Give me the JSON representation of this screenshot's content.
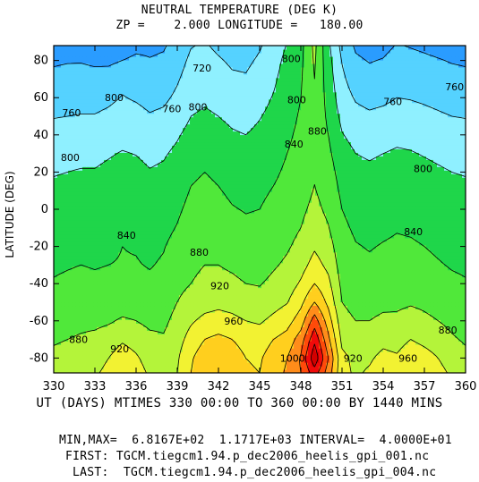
{
  "chart_data": {
    "type": "heatmap",
    "title": "NEUTRAL TEMPERATURE (DEG K)",
    "subtitle": "ZP =    2.000 LONGITUDE =   180.00",
    "ylabel": "LATITUDE (DEG)",
    "xlabel": "UT (DAYS) MTIMES 330 00:00 TO 360 00:00 BY 1440 MINS",
    "xlim": [
      330,
      360
    ],
    "ylim": [
      -88,
      88
    ],
    "x_ticks": [
      330,
      333,
      336,
      339,
      342,
      345,
      348,
      351,
      354,
      357,
      360
    ],
    "y_ticks": [
      -80,
      -60,
      -40,
      -20,
      0,
      20,
      40,
      60,
      80
    ],
    "contour_interval": 40,
    "levels": [
      680,
      720,
      760,
      800,
      840,
      880,
      920,
      960,
      1000,
      1040,
      1080,
      1120,
      1160
    ],
    "level_colors": [
      "#1c3ee0",
      "#2a9cff",
      "#55d2ff",
      "#8ff0ff",
      "#1fd64a",
      "#50e83a",
      "#b4f43a",
      "#f2f232",
      "#ffcf1e",
      "#ff8c1a",
      "#ff4a0a",
      "#f00a0a",
      "#d20000",
      "#ff2e8c"
    ],
    "x": [
      330,
      331,
      332,
      333,
      334,
      335,
      336,
      337,
      338,
      339,
      340,
      341,
      342,
      343,
      344,
      345,
      346,
      347,
      348,
      349,
      350,
      351,
      352,
      353,
      354,
      355,
      356,
      357,
      358,
      359,
      360
    ],
    "y": [
      -88,
      -80,
      -70,
      -60,
      -50,
      -40,
      -30,
      -20,
      -10,
      0,
      10,
      20,
      30,
      40,
      50,
      60,
      70,
      80,
      88
    ],
    "z": [
      [
        900,
        905,
        910,
        915,
        930,
        950,
        935,
        915,
        910,
        920,
        960,
        990,
        1000,
        985,
        965,
        960,
        985,
        1005,
        1040,
        1100,
        1020,
        930,
        915,
        925,
        940,
        935,
        955,
        945,
        930,
        915,
        900
      ],
      [
        890,
        895,
        900,
        905,
        920,
        940,
        925,
        905,
        900,
        915,
        955,
        985,
        995,
        980,
        960,
        955,
        980,
        1000,
        1045,
        1150,
        1040,
        930,
        910,
        915,
        930,
        925,
        945,
        935,
        920,
        905,
        890
      ],
      [
        875,
        880,
        885,
        890,
        900,
        915,
        905,
        890,
        885,
        905,
        935,
        960,
        970,
        960,
        945,
        940,
        960,
        975,
        1020,
        1110,
        1010,
        910,
        895,
        900,
        910,
        905,
        920,
        910,
        900,
        885,
        875
      ],
      [
        860,
        865,
        870,
        870,
        875,
        885,
        880,
        870,
        870,
        895,
        915,
        930,
        935,
        930,
        920,
        915,
        930,
        945,
        980,
        1060,
        980,
        895,
        880,
        880,
        890,
        890,
        900,
        890,
        880,
        870,
        860
      ],
      [
        850,
        852,
        855,
        855,
        858,
        862,
        860,
        855,
        858,
        880,
        895,
        905,
        910,
        905,
        895,
        892,
        905,
        918,
        950,
        1000,
        950,
        880,
        865,
        862,
        868,
        870,
        875,
        870,
        862,
        855,
        850
      ],
      [
        842,
        845,
        848,
        846,
        848,
        850,
        850,
        846,
        850,
        870,
        880,
        890,
        892,
        888,
        880,
        878,
        888,
        900,
        925,
        960,
        930,
        870,
        856,
        852,
        856,
        858,
        860,
        856,
        850,
        845,
        842
      ],
      [
        836,
        838,
        840,
        838,
        840,
        842,
        842,
        838,
        844,
        860,
        872,
        880,
        880,
        874,
        866,
        866,
        876,
        886,
        905,
        935,
        910,
        862,
        848,
        845,
        848,
        850,
        850,
        846,
        842,
        838,
        836
      ],
      [
        830,
        832,
        834,
        832,
        834,
        840,
        838,
        832,
        838,
        852,
        866,
        872,
        870,
        862,
        856,
        856,
        866,
        876,
        890,
        915,
        895,
        856,
        842,
        838,
        842,
        845,
        844,
        840,
        836,
        832,
        830
      ],
      [
        822,
        824,
        826,
        825,
        828,
        835,
        832,
        826,
        830,
        842,
        858,
        864,
        860,
        852,
        846,
        848,
        858,
        868,
        880,
        900,
        882,
        848,
        834,
        830,
        834,
        838,
        836,
        832,
        828,
        824,
        822
      ],
      [
        814,
        816,
        818,
        818,
        822,
        828,
        825,
        818,
        822,
        834,
        850,
        856,
        850,
        842,
        838,
        840,
        850,
        860,
        872,
        890,
        872,
        840,
        826,
        822,
        826,
        830,
        828,
        824,
        820,
        816,
        814
      ],
      [
        806,
        808,
        810,
        810,
        815,
        820,
        817,
        810,
        814,
        826,
        842,
        848,
        842,
        834,
        830,
        833,
        842,
        852,
        864,
        882,
        864,
        832,
        818,
        814,
        818,
        822,
        820,
        816,
        812,
        808,
        806
      ],
      [
        798,
        800,
        802,
        802,
        807,
        812,
        809,
        802,
        806,
        818,
        834,
        840,
        834,
        826,
        822,
        826,
        834,
        846,
        858,
        876,
        856,
        824,
        810,
        806,
        810,
        814,
        812,
        808,
        804,
        800,
        798
      ],
      [
        788,
        790,
        792,
        792,
        797,
        802,
        799,
        792,
        796,
        808,
        824,
        830,
        824,
        816,
        812,
        818,
        826,
        840,
        852,
        872,
        848,
        814,
        800,
        796,
        800,
        804,
        802,
        798,
        794,
        790,
        788
      ],
      [
        775,
        777,
        779,
        779,
        784,
        790,
        787,
        779,
        783,
        796,
        812,
        818,
        812,
        804,
        800,
        808,
        818,
        834,
        848,
        870,
        840,
        802,
        788,
        783,
        787,
        792,
        790,
        786,
        781,
        777,
        775
      ],
      [
        758,
        760,
        762,
        762,
        768,
        776,
        772,
        763,
        768,
        782,
        800,
        806,
        800,
        792,
        788,
        798,
        810,
        828,
        844,
        872,
        832,
        790,
        772,
        766,
        770,
        776,
        774,
        770,
        765,
        760,
        758
      ],
      [
        742,
        744,
        746,
        746,
        752,
        762,
        756,
        748,
        752,
        768,
        788,
        794,
        788,
        778,
        776,
        788,
        802,
        822,
        840,
        875,
        826,
        778,
        756,
        748,
        752,
        760,
        758,
        754,
        749,
        744,
        742
      ],
      [
        728,
        730,
        732,
        732,
        738,
        750,
        742,
        734,
        738,
        756,
        778,
        784,
        776,
        766,
        764,
        778,
        794,
        816,
        836,
        880,
        820,
        768,
        740,
        732,
        736,
        746,
        744,
        740,
        735,
        730,
        728
      ],
      [
        716,
        718,
        718,
        714,
        712,
        720,
        728,
        722,
        726,
        744,
        768,
        774,
        764,
        754,
        752,
        766,
        786,
        810,
        832,
        885,
        814,
        758,
        726,
        718,
        722,
        734,
        730,
        726,
        722,
        718,
        716
      ],
      [
        705,
        706,
        704,
        700,
        695,
        700,
        710,
        712,
        716,
        734,
        758,
        764,
        752,
        742,
        740,
        756,
        778,
        802,
        828,
        890,
        808,
        748,
        714,
        706,
        710,
        722,
        718,
        714,
        710,
        706,
        705
      ]
    ],
    "contour_labels": [
      {
        "text": "720",
        "x": 340.8,
        "y": 76
      },
      {
        "text": "800",
        "x": 334.4,
        "y": 60
      },
      {
        "text": "760",
        "x": 331.3,
        "y": 52
      },
      {
        "text": "760",
        "x": 338.6,
        "y": 54
      },
      {
        "text": "800",
        "x": 340.5,
        "y": 55
      },
      {
        "text": "800",
        "x": 347.3,
        "y": 81
      },
      {
        "text": "800",
        "x": 347.7,
        "y": 59
      },
      {
        "text": "880",
        "x": 349.2,
        "y": 42
      },
      {
        "text": "840",
        "x": 347.5,
        "y": 35
      },
      {
        "text": "800",
        "x": 331.2,
        "y": 28
      },
      {
        "text": "760",
        "x": 354.7,
        "y": 58
      },
      {
        "text": "760",
        "x": 359.2,
        "y": 66
      },
      {
        "text": "800",
        "x": 356.9,
        "y": 22
      },
      {
        "text": "840",
        "x": 335.3,
        "y": -14
      },
      {
        "text": "880",
        "x": 340.6,
        "y": -23
      },
      {
        "text": "840",
        "x": 356.2,
        "y": -12
      },
      {
        "text": "920",
        "x": 342.1,
        "y": -41
      },
      {
        "text": "960",
        "x": 343.1,
        "y": -60
      },
      {
        "text": "880",
        "x": 331.8,
        "y": -70
      },
      {
        "text": "920",
        "x": 334.8,
        "y": -75
      },
      {
        "text": "880",
        "x": 358.7,
        "y": -65
      },
      {
        "text": "1000",
        "x": 347.4,
        "y": -80
      },
      {
        "text": "920",
        "x": 351.8,
        "y": -80
      },
      {
        "text": "960",
        "x": 355.8,
        "y": -80
      }
    ]
  },
  "footer": {
    "minmax": "MIN,MAX=  6.8167E+02  1.1717E+03 INTERVAL=  4.0000E+01",
    "first": "FIRST: TGCM.tiegcm1.94.p_dec2006_heelis_gpi_001.nc",
    "last": "LAST:  TGCM.tiegcm1.94.p_dec2006_heelis_gpi_004.nc"
  }
}
